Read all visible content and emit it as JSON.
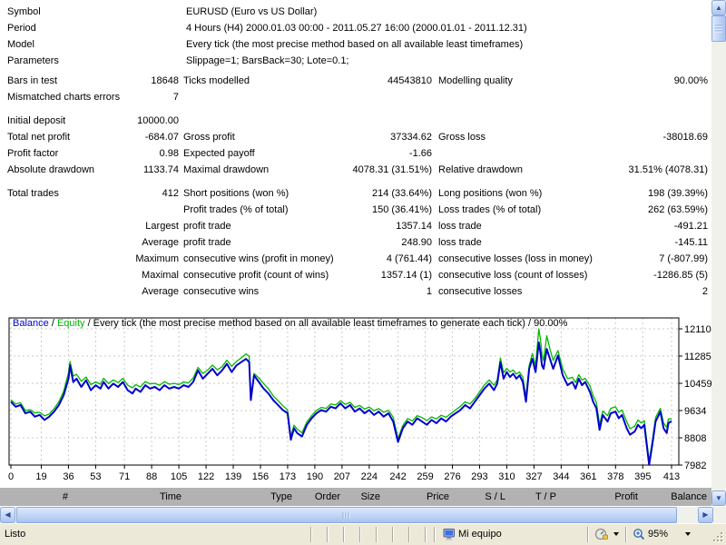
{
  "report": {
    "info_rows": [
      {
        "label": "Symbol",
        "value": "EURUSD (Euro vs US Dollar)"
      },
      {
        "label": "Period",
        "value": "4 Hours (H4) 2000.01.03 00:00 - 2011.05.27 16:00 (2000.01.01 - 2011.12.31)"
      },
      {
        "label": "Model",
        "value": "Every tick (the most precise method based on all available least timeframes)"
      },
      {
        "label": "Parameters",
        "value": "Slippage=1; BarsBack=30; Lote=0.1;"
      }
    ],
    "stat_groups": [
      [
        [
          "Bars in test",
          "18648",
          "Ticks modelled",
          "44543810",
          "Modelling quality",
          "90.00%"
        ],
        [
          "Mismatched charts errors",
          "7",
          "",
          "",
          "",
          ""
        ]
      ],
      [
        [
          "Initial deposit",
          "10000.00",
          "",
          "",
          "",
          ""
        ],
        [
          "Total net profit",
          "-684.07",
          "Gross profit",
          "37334.62",
          "Gross loss",
          "-38018.69"
        ],
        [
          "Profit factor",
          "0.98",
          "Expected payoff",
          "-1.66",
          "",
          ""
        ],
        [
          "Absolute drawdown",
          "1133.74",
          "Maximal drawdown",
          "4078.31 (31.51%)",
          "Relative drawdown",
          "31.51% (4078.31)"
        ]
      ],
      [
        [
          "Total trades",
          "412",
          "Short positions (won %)",
          "214 (33.64%)",
          "Long positions (won %)",
          "198 (39.39%)"
        ],
        [
          "",
          "",
          "Profit trades (% of total)",
          "150 (36.41%)",
          "Loss trades (% of total)",
          "262 (63.59%)"
        ],
        [
          "",
          "Largest",
          "profit trade",
          "1357.14",
          "loss trade",
          "-491.21"
        ],
        [
          "",
          "Average",
          "profit trade",
          "248.90",
          "loss trade",
          "-145.11"
        ],
        [
          "",
          "Maximum",
          "consecutive wins (profit in money)",
          "4 (761.44)",
          "consecutive losses (loss in money)",
          "7 (-807.99)"
        ],
        [
          "",
          "Maximal",
          "consecutive profit (count of wins)",
          "1357.14 (1)",
          "consecutive loss (count of losses)",
          "-1286.85 (5)"
        ],
        [
          "",
          "Average",
          "consecutive wins",
          "1",
          "consecutive losses",
          "2"
        ]
      ]
    ]
  },
  "chart_data": {
    "type": "line",
    "title_parts": [
      "Balance",
      " / ",
      "Equity",
      " / Every tick (the most precise method based on all available least timeframes to generate each tick) / 90.00%"
    ],
    "x_ticks": [
      0,
      19,
      36,
      53,
      71,
      88,
      105,
      122,
      139,
      156,
      173,
      190,
      207,
      224,
      242,
      259,
      276,
      293,
      310,
      327,
      344,
      361,
      378,
      395,
      413
    ],
    "y_ticks": [
      12110,
      11285,
      10459,
      9634,
      8808,
      7982
    ],
    "xlim": [
      0,
      413
    ],
    "ylim": [
      7982,
      12441
    ],
    "grid": true,
    "legend_position": "top-left-title",
    "x": [
      0,
      3,
      6,
      9,
      12,
      15,
      18,
      21,
      24,
      27,
      30,
      33,
      36,
      37,
      39,
      41,
      44,
      47,
      50,
      53,
      56,
      58,
      61,
      64,
      67,
      70,
      73,
      76,
      78,
      81,
      84,
      87,
      90,
      93,
      96,
      99,
      102,
      105,
      108,
      111,
      114,
      117,
      120,
      123,
      126,
      129,
      132,
      135,
      138,
      141,
      144,
      147,
      149,
      150,
      152,
      155,
      158,
      161,
      164,
      167,
      170,
      173,
      175,
      177,
      179,
      182,
      185,
      188,
      191,
      194,
      197,
      200,
      203,
      206,
      209,
      212,
      215,
      218,
      221,
      224,
      227,
      230,
      233,
      236,
      239,
      242,
      245,
      248,
      251,
      254,
      257,
      260,
      263,
      266,
      269,
      272,
      275,
      278,
      281,
      284,
      287,
      290,
      293,
      296,
      299,
      302,
      304,
      306,
      308,
      310,
      312,
      314,
      316,
      318,
      320,
      322,
      324,
      326,
      328,
      330,
      331,
      332,
      333,
      335,
      337,
      339,
      342,
      345,
      348,
      351,
      353,
      355,
      357,
      359,
      362,
      364,
      366,
      368,
      370,
      373,
      375,
      378,
      380,
      382,
      385,
      387,
      390,
      392,
      394,
      396,
      399,
      401,
      403,
      406,
      408,
      410,
      411,
      413
    ],
    "series": [
      {
        "name": "Balance",
        "color": "#0000CC",
        "width": 2,
        "values": [
          9900,
          9750,
          9800,
          9550,
          9600,
          9450,
          9500,
          9350,
          9450,
          9600,
          9800,
          10100,
          10600,
          11000,
          10500,
          10600,
          10350,
          10550,
          10250,
          10400,
          10300,
          10500,
          10300,
          10450,
          10350,
          10500,
          10250,
          10150,
          10300,
          10200,
          10400,
          10300,
          10350,
          10250,
          10400,
          10300,
          10350,
          10300,
          10400,
          10350,
          10500,
          10850,
          10600,
          10750,
          10900,
          10700,
          10850,
          11050,
          10800,
          11000,
          11100,
          11200,
          11100,
          9950,
          10700,
          10500,
          10300,
          10150,
          9950,
          9800,
          9650,
          9550,
          8750,
          9100,
          8950,
          8850,
          9200,
          9400,
          9550,
          9650,
          9600,
          9750,
          9700,
          9850,
          9700,
          9800,
          9600,
          9700,
          9550,
          9650,
          9500,
          9600,
          9450,
          9550,
          9300,
          8680,
          9100,
          9300,
          9200,
          9400,
          9300,
          9200,
          9350,
          9250,
          9400,
          9300,
          9450,
          9550,
          9650,
          9800,
          9700,
          9900,
          10100,
          10300,
          10450,
          10250,
          10450,
          11100,
          10600,
          10800,
          10650,
          10750,
          10600,
          10700,
          10500,
          9900,
          10900,
          11200,
          10800,
          11700,
          11400,
          11000,
          10900,
          11500,
          11200,
          10900,
          11300,
          10700,
          10400,
          10500,
          10300,
          10600,
          10400,
          10500,
          10200,
          9900,
          9700,
          9050,
          9500,
          9300,
          9550,
          9600,
          9400,
          9500,
          9100,
          8900,
          9000,
          9200,
          9100,
          9200,
          7990,
          8600,
          9300,
          9600,
          9100,
          8950,
          9250,
          9320
        ]
      },
      {
        "name": "Equity",
        "color": "#00B800",
        "width": 1.3,
        "values": [
          9960,
          9830,
          9870,
          9640,
          9660,
          9560,
          9580,
          9470,
          9530,
          9690,
          9900,
          10220,
          10780,
          11120,
          10680,
          10730,
          10520,
          10650,
          10420,
          10500,
          10430,
          10610,
          10450,
          10560,
          10480,
          10610,
          10400,
          10320,
          10420,
          10350,
          10510,
          10440,
          10460,
          10400,
          10510,
          10430,
          10460,
          10420,
          10500,
          10470,
          10620,
          10940,
          10760,
          10860,
          11010,
          10870,
          10960,
          11160,
          10970,
          11120,
          11230,
          11350,
          11280,
          10020,
          10760,
          10620,
          10450,
          10290,
          10080,
          9930,
          9780,
          9650,
          8850,
          9190,
          9070,
          8960,
          9290,
          9480,
          9640,
          9730,
          9700,
          9830,
          9800,
          9930,
          9820,
          9880,
          9730,
          9790,
          9680,
          9740,
          9630,
          9690,
          9580,
          9640,
          9430,
          8790,
          9180,
          9390,
          9320,
          9480,
          9420,
          9330,
          9440,
          9380,
          9490,
          9430,
          9540,
          9650,
          9760,
          9900,
          9830,
          10000,
          10200,
          10410,
          10560,
          10400,
          10560,
          11220,
          10780,
          10910,
          10800,
          10860,
          10740,
          10800,
          10650,
          10050,
          11000,
          11360,
          11000,
          12110,
          11800,
          11350,
          11150,
          11900,
          11500,
          11150,
          11450,
          10900,
          10600,
          10640,
          10480,
          10720,
          10560,
          10610,
          10380,
          10080,
          9880,
          9200,
          9620,
          9480,
          9700,
          9750,
          9580,
          9650,
          9300,
          9080,
          9160,
          9350,
          9260,
          9330,
          8100,
          8720,
          9420,
          9700,
          9260,
          9120,
          9380,
          9380
        ]
      }
    ]
  },
  "results_table": {
    "headers": [
      "#",
      "Time",
      "Type",
      "Order",
      "Size",
      "Price",
      "S / L",
      "T / P",
      "Profit",
      "Balance"
    ]
  },
  "statusbar": {
    "ready_text": "Listo",
    "zone_text": "Mi equipo",
    "zoom_text": "95%"
  }
}
